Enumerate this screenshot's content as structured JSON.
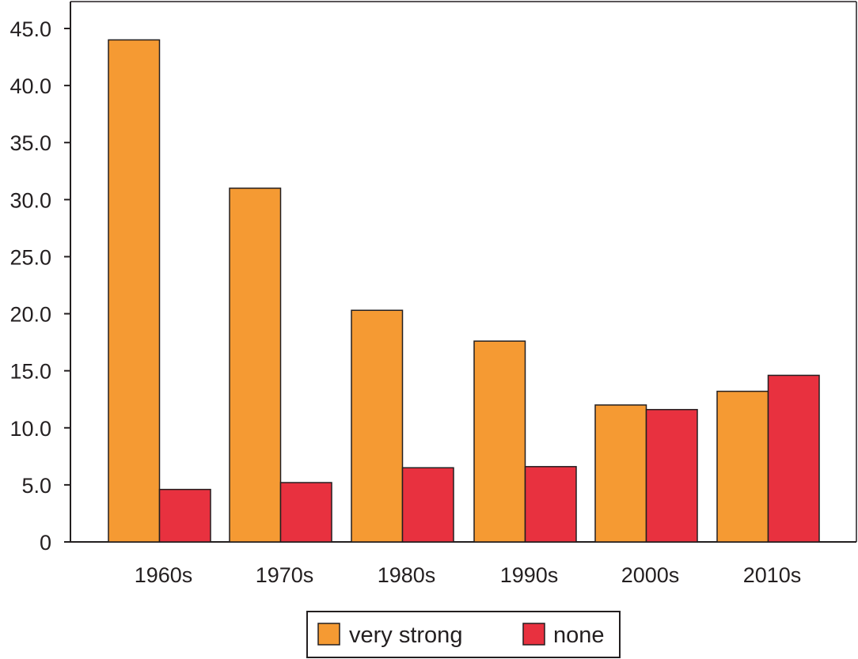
{
  "chart_data": {
    "type": "bar",
    "title": "",
    "xlabel": "",
    "ylabel": "",
    "categories": [
      "1960s",
      "1970s",
      "1980s",
      "1990s",
      "2000s",
      "2010s"
    ],
    "series": [
      {
        "name": "very strong",
        "color": "#f59a33",
        "values": [
          44.0,
          31.0,
          20.3,
          17.6,
          12.0,
          13.2
        ]
      },
      {
        "name": "none",
        "color": "#e8313f",
        "values": [
          4.6,
          5.2,
          6.5,
          6.6,
          11.6,
          14.6
        ]
      }
    ],
    "ylim": [
      0,
      45
    ],
    "yticks": [
      "0",
      "5.0",
      "10.0",
      "15.0",
      "20.0",
      "25.0",
      "30.0",
      "35.0",
      "40.0",
      "45.0"
    ],
    "grid": false,
    "legend": "bottom"
  }
}
